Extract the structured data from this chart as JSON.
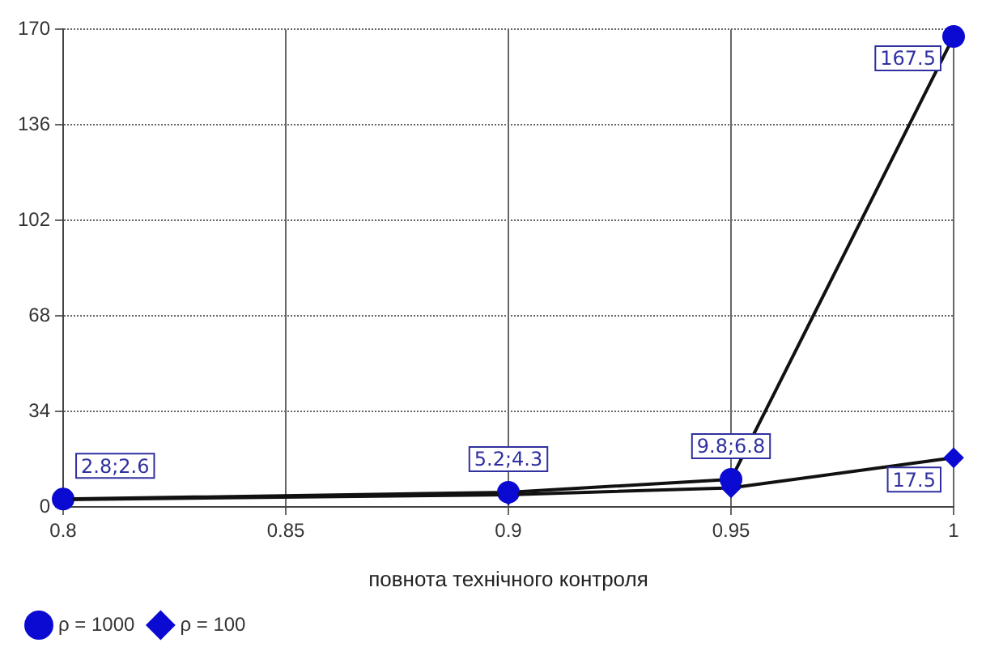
{
  "chart_data": {
    "type": "line",
    "xlabel": "повнота технічного контроля",
    "x": [
      0.8,
      0.9,
      0.95,
      1
    ],
    "xlim": [
      0.8,
      1
    ],
    "xticks": [
      0.8,
      0.85,
      0.9,
      0.95,
      1
    ],
    "ylim": [
      0,
      170
    ],
    "yticks": [
      0,
      34,
      68,
      102,
      136,
      170
    ],
    "grid": true,
    "legend": "bottom left",
    "series": [
      {
        "name": "ρ = 1000",
        "color": "#0a0ad2",
        "marker": "circle",
        "values": [
          2.8,
          5.2,
          9.8,
          167.5
        ],
        "value_labels": [
          "2.8;2.6",
          "5.2;4.3",
          "9.8;6.8",
          "167.5"
        ]
      },
      {
        "name": "ρ = 100",
        "color": "#0a0ad2",
        "marker": "diamond",
        "values": [
          2.6,
          4.3,
          6.8,
          17.5
        ],
        "value_labels": [
          null,
          null,
          null,
          "17.5"
        ]
      }
    ]
  }
}
